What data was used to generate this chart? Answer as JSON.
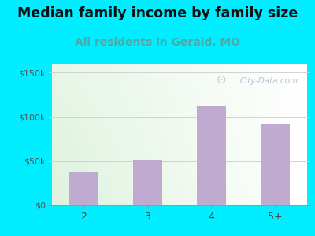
{
  "title": "Median family income by family size",
  "subtitle": "All residents in Gerald, MO",
  "categories": [
    "2",
    "3",
    "4",
    "5+"
  ],
  "values": [
    37000,
    52000,
    112000,
    92000
  ],
  "bar_color": "#c0aad0",
  "title_fontsize": 12.5,
  "subtitle_fontsize": 10,
  "subtitle_color": "#4aaaaa",
  "title_color": "#111111",
  "bg_color": "#00eeff",
  "tick_label_color": "#444444",
  "ytick_color": "#555555",
  "ylim": [
    0,
    160000
  ],
  "yticks": [
    0,
    50000,
    100000,
    150000
  ],
  "ytick_labels": [
    "$0",
    "$50k",
    "$100k",
    "$150k"
  ],
  "watermark": "City-Data.com",
  "watermark_color": "#aab8cc"
}
